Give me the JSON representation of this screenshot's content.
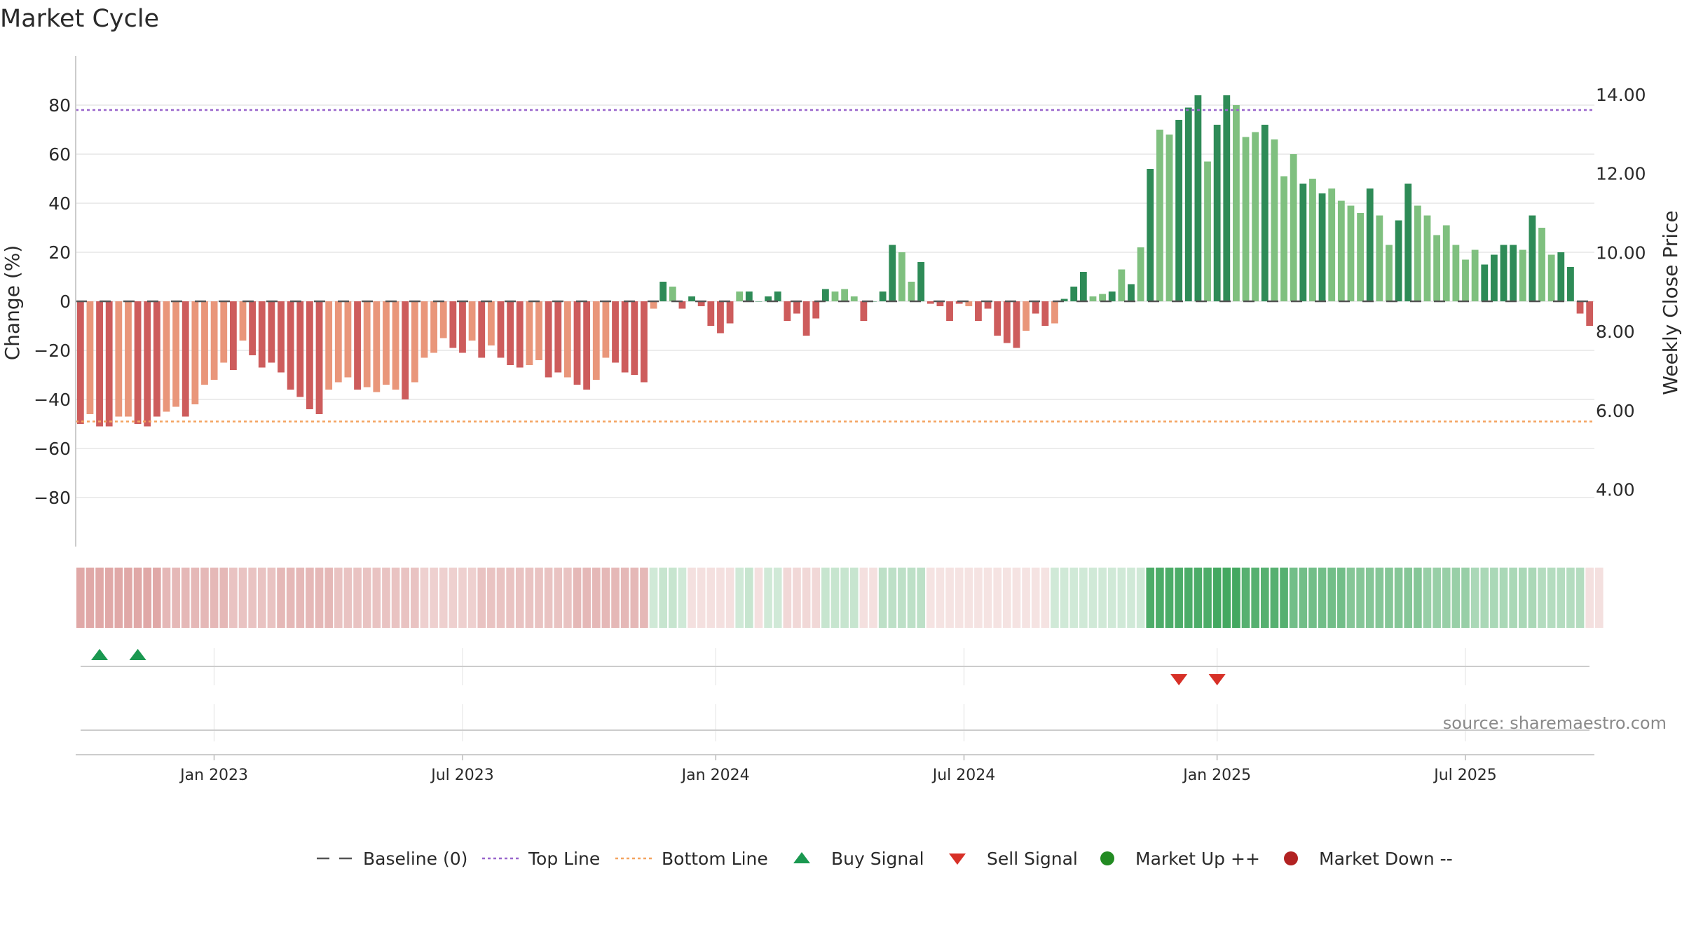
{
  "chart_data": {
    "type": "bar",
    "title": "Market Cycle",
    "ylabel": "Change (%)",
    "y2label": "Weekly Close Price",
    "ylim": [
      -92,
      92
    ],
    "y2lim": [
      3.05,
      14.48
    ],
    "yticks": [
      "80",
      "60",
      "40",
      "20",
      "0",
      "−20",
      "−40",
      "−60",
      "−80"
    ],
    "ytick_values": [
      80,
      60,
      40,
      20,
      0,
      -20,
      -40,
      -60,
      -80
    ],
    "y2ticks": [
      "14.00",
      "12.00",
      "10.00",
      "8.00",
      "6.00",
      "4.00"
    ],
    "y2tick_values": [
      14,
      12,
      10,
      8,
      6,
      4
    ],
    "xticks": [
      "Jan 2023",
      "Jul 2023",
      "Jan 2024",
      "Jul 2024",
      "Jan 2025",
      "Jul 2025"
    ],
    "xtick_weeks": [
      14,
      40,
      66.5,
      92.5,
      119,
      145
    ],
    "x": "weekly, one bar per week from Oct 2022 to Oct 2025",
    "values": [
      -50,
      -46,
      -51,
      -51,
      -47,
      -47,
      -50,
      -51,
      -47,
      -45,
      -43,
      -47,
      -42,
      -34,
      -32,
      -25,
      -28,
      -16,
      -22,
      -27,
      -25,
      -29,
      -36,
      -39,
      -44,
      -46,
      -36,
      -33,
      -31,
      -36,
      -35,
      -37,
      -34,
      -36,
      -40,
      -33,
      -23,
      -21,
      -15,
      -19,
      -21,
      -16,
      -23,
      -18,
      -23,
      -26,
      -27,
      -26,
      -24,
      -31,
      -29,
      -31,
      -34,
      -36,
      -32,
      -23,
      -25,
      -29,
      -30,
      -33,
      -3,
      8,
      6,
      -3,
      2,
      -2,
      -10,
      -13,
      -9,
      4,
      4,
      0,
      2,
      4,
      -8,
      -5,
      -14,
      -7,
      5,
      4,
      5,
      2,
      -8,
      0,
      4,
      23,
      20,
      8,
      16,
      -1,
      -2,
      -8,
      -1,
      -2,
      -8,
      -3,
      -14,
      -17,
      -19,
      -12,
      -5,
      -10,
      -9,
      1,
      6,
      12,
      2,
      3,
      4,
      13,
      7,
      22,
      54,
      70,
      68,
      74,
      79,
      84,
      57,
      72,
      84,
      80,
      67,
      69,
      72,
      66,
      51,
      60,
      48,
      50,
      44,
      46,
      41,
      39,
      36,
      46,
      35,
      23,
      33,
      48,
      39,
      35,
      27,
      31,
      23,
      17,
      21,
      15,
      19,
      23,
      23,
      21,
      35,
      30,
      19,
      20,
      14,
      -5,
      -10
    ],
    "light_bar_indices": [
      1,
      4,
      5,
      9,
      10,
      12,
      13,
      14,
      15,
      17,
      26,
      27,
      28,
      30,
      31,
      32,
      33,
      35,
      36,
      37,
      38,
      41,
      43,
      47,
      48,
      51,
      54,
      55,
      60,
      62,
      69,
      79,
      80,
      81,
      86,
      87,
      93,
      99,
      102,
      106,
      107,
      109,
      111,
      113,
      114,
      118,
      121,
      122,
      123,
      125,
      126,
      127,
      129,
      131,
      132,
      133,
      134,
      136,
      137,
      140,
      141,
      142,
      143,
      144,
      145,
      146,
      151,
      153,
      154
    ],
    "reference_lines": {
      "baseline": {
        "name": "Baseline (0)",
        "value": 0
      },
      "top_line": {
        "name": "Top Line",
        "value": 78
      },
      "bottom_line": {
        "name": "Bottom Line",
        "value": -49
      }
    },
    "market_state_strip": [
      -0.55,
      -0.55,
      -0.55,
      -0.55,
      -0.55,
      -0.55,
      -0.55,
      -0.55,
      -0.55,
      -0.45,
      -0.45,
      -0.45,
      -0.45,
      -0.45,
      -0.45,
      -0.45,
      -0.38,
      -0.38,
      -0.38,
      -0.38,
      -0.38,
      -0.45,
      -0.45,
      -0.45,
      -0.45,
      -0.45,
      -0.45,
      -0.38,
      -0.38,
      -0.38,
      -0.38,
      -0.38,
      -0.38,
      -0.38,
      -0.38,
      -0.38,
      -0.3,
      -0.3,
      -0.3,
      -0.3,
      -0.3,
      -0.3,
      -0.38,
      -0.38,
      -0.38,
      -0.38,
      -0.38,
      -0.38,
      -0.38,
      -0.38,
      -0.38,
      -0.38,
      -0.45,
      -0.45,
      -0.45,
      -0.45,
      -0.45,
      -0.45,
      -0.45,
      -0.45,
      0.25,
      0.3,
      0.3,
      0.25,
      -0.2,
      -0.2,
      -0.2,
      -0.2,
      -0.2,
      0.25,
      0.3,
      -0.2,
      0.25,
      0.25,
      -0.25,
      -0.25,
      -0.25,
      -0.25,
      0.3,
      0.3,
      0.3,
      0.3,
      -0.2,
      -0.2,
      0.35,
      0.35,
      0.35,
      0.35,
      0.35,
      -0.18,
      -0.18,
      -0.18,
      -0.18,
      -0.18,
      -0.18,
      -0.18,
      -0.18,
      -0.18,
      -0.18,
      -0.18,
      -0.18,
      -0.18,
      0.25,
      0.25,
      0.25,
      0.25,
      0.25,
      0.25,
      0.25,
      0.25,
      0.25,
      0.25,
      0.95,
      0.95,
      0.95,
      0.95,
      0.95,
      0.95,
      0.95,
      1.0,
      1.0,
      1.0,
      0.9,
      0.9,
      0.9,
      0.9,
      0.9,
      0.75,
      0.75,
      0.75,
      0.75,
      0.75,
      0.75,
      0.65,
      0.65,
      0.65,
      0.65,
      0.65,
      0.65,
      0.65,
      0.65,
      0.55,
      0.55,
      0.55,
      0.55,
      0.55,
      0.45,
      0.45,
      0.45,
      0.45,
      0.45,
      0.45,
      0.45,
      0.4,
      0.4,
      0.4,
      0.4,
      0.4,
      -0.2,
      -0.2
    ],
    "buy_signal_weeks": [
      2,
      6
    ],
    "sell_signal_weeks": [
      115,
      119
    ],
    "colors": {
      "up_dark": "#2e8b57",
      "up_light": "#7fc07f",
      "down_dark": "#cd5c5c",
      "down_light": "#e9967a",
      "top_line": "#9966cc",
      "bottom_line": "#f4a460",
      "baseline": "#555555",
      "buy": "#1a9850",
      "sell": "#d73027",
      "market_up": "#228b22",
      "market_down": "#b22222",
      "grid": "#e6e6e6",
      "axis": "#cccccc"
    },
    "legend": [
      {
        "label": "Baseline (0)",
        "marker": "dash-line",
        "color": "#555555"
      },
      {
        "label": "Top Line",
        "marker": "dotted-line",
        "color": "#9966cc"
      },
      {
        "label": "Bottom Line",
        "marker": "dotted-line",
        "color": "#f4a460"
      },
      {
        "label": "Buy Signal",
        "marker": "triangle-up",
        "color": "#1a9850"
      },
      {
        "label": "Sell Signal",
        "marker": "triangle-down",
        "color": "#d73027"
      },
      {
        "label": "Market Up ++",
        "marker": "circle",
        "color": "#228b22"
      },
      {
        "label": "Market Down --",
        "marker": "circle",
        "color": "#b22222"
      }
    ],
    "legend_position": "bottom-center",
    "source_note": "source: sharemaestro.com"
  }
}
